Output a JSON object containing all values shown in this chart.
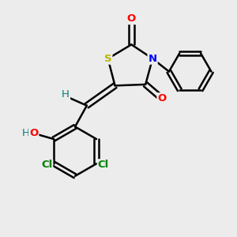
{
  "background_color": "#ececec",
  "bond_color": "#000000",
  "atom_colors": {
    "S": "#b8b800",
    "N": "#0000ff",
    "O": "#ff0000",
    "Cl": "#008000",
    "OH_O": "#ff0000",
    "OH_H": "#008080",
    "H": "#008080",
    "C": "#000000"
  },
  "figsize": [
    3.0,
    3.0
  ],
  "dpi": 100
}
